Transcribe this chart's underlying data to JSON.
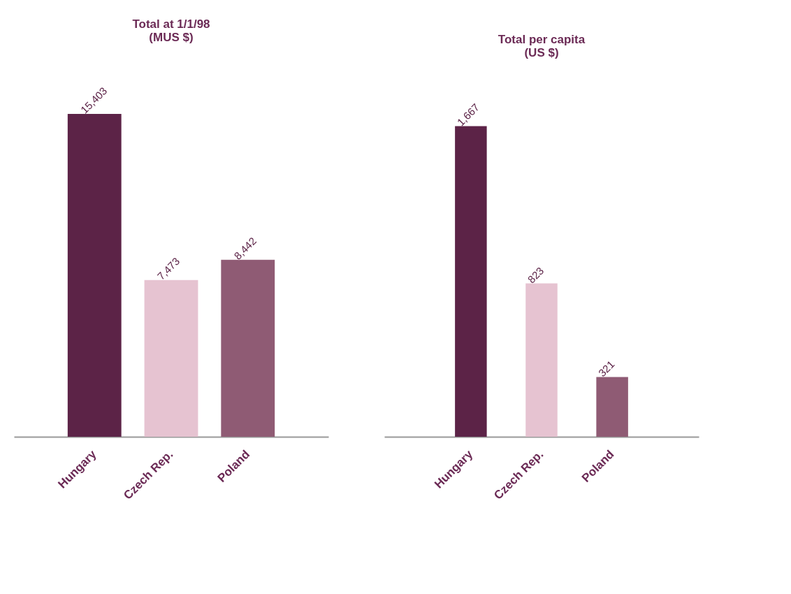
{
  "chart_data": [
    {
      "type": "bar",
      "title": "Total at 1/1/98\n(MUS $)",
      "categories": [
        "Hungary",
        "Czech Rep.",
        "Poland"
      ],
      "values": [
        15403,
        7473,
        8442
      ],
      "value_labels": [
        "15,403",
        "7,473",
        "8,442"
      ],
      "colors": [
        "#5c2347",
        "#e6c3d1",
        "#8f5b74"
      ],
      "grid": false,
      "legend": false
    },
    {
      "type": "bar",
      "title": "Total per capita\n(US $)",
      "categories": [
        "Hungary",
        "Czech Rep.",
        "Poland"
      ],
      "values": [
        1667,
        823,
        321
      ],
      "value_labels": [
        "1,667",
        "823",
        "321"
      ],
      "colors": [
        "#5c2347",
        "#e6c3d1",
        "#8f5b74"
      ],
      "grid": false,
      "legend": false
    }
  ]
}
